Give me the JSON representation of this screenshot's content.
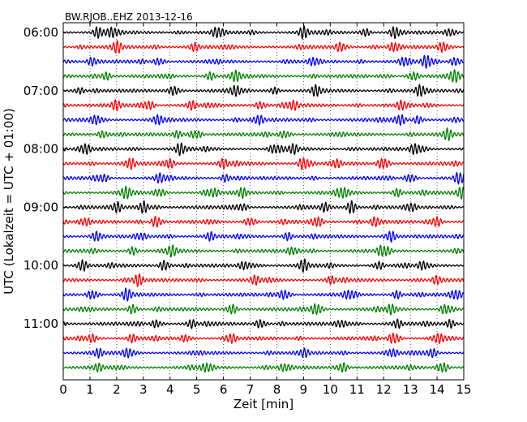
{
  "chart_data": {
    "type": "line",
    "title": "BW.RJOB..EHZ 2013-12-16",
    "xlabel": "Zeit  [min]",
    "ylabel": "UTC (Lokalzeit = UTC + 01:00)",
    "xlim": [
      0,
      15
    ],
    "x_ticks": [
      "0",
      "1",
      "2",
      "3",
      "4",
      "5",
      "6",
      "7",
      "8",
      "9",
      "10",
      "11",
      "12",
      "13",
      "14",
      "15"
    ],
    "y_tick_labels": [
      "06:00",
      "07:00",
      "08:00",
      "09:00",
      "10:00",
      "11:00"
    ],
    "trace_minutes": 15,
    "trace_count": 24,
    "trace_colors": [
      "#000000",
      "#ff0000",
      "#0000ff",
      "#008000"
    ],
    "grid": "vertical dotted at each minute",
    "series": [
      {
        "start": "06:00",
        "color": "#000000",
        "bursts": [
          [
            1.3,
            0.8
          ],
          [
            1.9,
            0.7
          ],
          [
            5.8,
            0.9
          ],
          [
            9.0,
            0.9
          ],
          [
            11.3,
            0.6
          ],
          [
            12.4,
            0.7
          ],
          [
            14.5,
            0.6
          ]
        ]
      },
      {
        "start": "06:15",
        "color": "#ff0000",
        "bursts": [
          [
            2.0,
            0.9
          ],
          [
            4.9,
            0.6
          ],
          [
            10.4,
            0.7
          ],
          [
            12.4,
            0.8
          ],
          [
            14.2,
            0.6
          ]
        ]
      },
      {
        "start": "06:30",
        "color": "#0000ff",
        "bursts": [
          [
            1.1,
            0.6
          ],
          [
            3.6,
            0.6
          ],
          [
            9.4,
            0.6
          ],
          [
            12.8,
            0.7
          ],
          [
            13.6,
            0.9
          ],
          [
            14.7,
            0.7
          ]
        ]
      },
      {
        "start": "06:45",
        "color": "#008000",
        "bursts": [
          [
            1.6,
            0.6
          ],
          [
            5.5,
            0.6
          ],
          [
            6.4,
            0.7
          ],
          [
            13.1,
            0.7
          ],
          [
            14.6,
            0.8
          ]
        ]
      },
      {
        "start": "07:00",
        "color": "#000000",
        "bursts": [
          [
            0.6,
            0.5
          ],
          [
            4.2,
            0.6
          ],
          [
            6.4,
            0.7
          ],
          [
            7.9,
            0.5
          ],
          [
            9.5,
            0.6
          ],
          [
            13.4,
            0.9
          ]
        ]
      },
      {
        "start": "07:15",
        "color": "#ff0000",
        "bursts": [
          [
            2.0,
            0.7
          ],
          [
            3.2,
            0.8
          ],
          [
            4.8,
            0.6
          ],
          [
            7.4,
            0.6
          ],
          [
            8.6,
            0.7
          ],
          [
            12.7,
            0.7
          ]
        ]
      },
      {
        "start": "07:30",
        "color": "#0000ff",
        "bursts": [
          [
            1.3,
            0.6
          ],
          [
            3.5,
            0.6
          ],
          [
            7.3,
            0.7
          ],
          [
            12.6,
            0.9
          ],
          [
            13.3,
            0.6
          ]
        ]
      },
      {
        "start": "07:45",
        "color": "#008000",
        "bursts": [
          [
            1.5,
            0.6
          ],
          [
            4.3,
            0.5
          ],
          [
            5.0,
            0.6
          ],
          [
            8.3,
            0.6
          ],
          [
            14.4,
            0.8
          ]
        ]
      },
      {
        "start": "08:00",
        "color": "#000000",
        "bursts": [
          [
            0.8,
            0.8
          ],
          [
            4.4,
            0.9
          ],
          [
            7.9,
            0.6
          ],
          [
            8.6,
            0.7
          ],
          [
            13.2,
            0.9
          ]
        ]
      },
      {
        "start": "08:15",
        "color": "#ff0000",
        "bursts": [
          [
            2.5,
            0.8
          ],
          [
            4.0,
            0.6
          ],
          [
            6.0,
            0.7
          ],
          [
            9.0,
            1.0
          ],
          [
            10.2,
            0.6
          ],
          [
            12.0,
            0.8
          ]
        ]
      },
      {
        "start": "08:30",
        "color": "#0000ff",
        "bursts": [
          [
            1.5,
            0.6
          ],
          [
            3.6,
            0.6
          ],
          [
            6.1,
            0.6
          ],
          [
            13.0,
            0.7
          ],
          [
            14.9,
            1.0
          ]
        ]
      },
      {
        "start": "08:45",
        "color": "#008000",
        "bursts": [
          [
            2.3,
            0.8
          ],
          [
            3.6,
            0.6
          ],
          [
            5.6,
            0.7
          ],
          [
            6.7,
            0.7
          ],
          [
            10.4,
            0.9
          ],
          [
            12.5,
            0.6
          ],
          [
            14.9,
            0.9
          ]
        ]
      },
      {
        "start": "09:00",
        "color": "#000000",
        "bursts": [
          [
            2.0,
            0.7
          ],
          [
            3.0,
            0.9
          ],
          [
            6.7,
            0.6
          ],
          [
            9.8,
            0.6
          ],
          [
            10.8,
            1.0
          ],
          [
            13.0,
            0.6
          ]
        ]
      },
      {
        "start": "09:15",
        "color": "#ff0000",
        "bursts": [
          [
            0.8,
            0.6
          ],
          [
            3.5,
            0.9
          ],
          [
            7.0,
            0.7
          ],
          [
            9.5,
            0.8
          ],
          [
            11.7,
            0.7
          ],
          [
            14.0,
            0.7
          ]
        ]
      },
      {
        "start": "09:30",
        "color": "#0000ff",
        "bursts": [
          [
            1.3,
            0.6
          ],
          [
            2.9,
            0.5
          ],
          [
            5.5,
            0.6
          ],
          [
            8.4,
            0.6
          ],
          [
            12.3,
            0.7
          ]
        ]
      },
      {
        "start": "09:45",
        "color": "#008000",
        "bursts": [
          [
            2.6,
            0.6
          ],
          [
            4.1,
            0.7
          ],
          [
            8.6,
            0.6
          ],
          [
            12.0,
            0.9
          ]
        ]
      },
      {
        "start": "10:00",
        "color": "#000000",
        "bursts": [
          [
            0.7,
            0.9
          ],
          [
            3.8,
            0.8
          ],
          [
            6.8,
            0.7
          ],
          [
            9.0,
            0.9
          ],
          [
            11.8,
            0.6
          ],
          [
            13.5,
            0.6
          ]
        ]
      },
      {
        "start": "10:15",
        "color": "#ff0000",
        "bursts": [
          [
            2.8,
            0.9
          ],
          [
            7.2,
            0.6
          ],
          [
            10.0,
            0.6
          ],
          [
            14.0,
            0.6
          ]
        ]
      },
      {
        "start": "10:30",
        "color": "#0000ff",
        "bursts": [
          [
            1.1,
            0.8
          ],
          [
            2.4,
            0.7
          ],
          [
            8.3,
            0.8
          ],
          [
            10.8,
            0.6
          ],
          [
            12.5,
            0.6
          ],
          [
            14.7,
            0.8
          ]
        ]
      },
      {
        "start": "10:45",
        "color": "#008000",
        "bursts": [
          [
            2.6,
            0.7
          ],
          [
            6.3,
            0.6
          ],
          [
            9.5,
            1.0
          ],
          [
            12.3,
            0.7
          ],
          [
            14.3,
            0.7
          ]
        ]
      },
      {
        "start": "11:00",
        "color": "#000000",
        "bursts": [
          [
            3.5,
            0.6
          ],
          [
            4.8,
            0.6
          ],
          [
            7.4,
            0.7
          ],
          [
            10.4,
            0.6
          ],
          [
            12.5,
            0.6
          ],
          [
            14.5,
            0.6
          ]
        ]
      },
      {
        "start": "11:15",
        "color": "#ff0000",
        "bursts": [
          [
            1.1,
            0.6
          ],
          [
            2.6,
            0.6
          ],
          [
            4.6,
            0.5
          ],
          [
            6.3,
            0.6
          ],
          [
            12.4,
            1.0
          ],
          [
            14.0,
            0.7
          ]
        ]
      },
      {
        "start": "11:30",
        "color": "#0000ff",
        "bursts": [
          [
            1.3,
            0.6
          ],
          [
            2.5,
            0.6
          ],
          [
            9.0,
            0.6
          ],
          [
            12.3,
            0.6
          ],
          [
            13.8,
            0.7
          ]
        ]
      },
      {
        "start": "11:45",
        "color": "#008000",
        "bursts": [
          [
            1.3,
            0.5
          ],
          [
            5.4,
            0.7
          ],
          [
            8.3,
            0.6
          ],
          [
            10.5,
            0.6
          ],
          [
            14.2,
            0.9
          ]
        ]
      }
    ]
  }
}
